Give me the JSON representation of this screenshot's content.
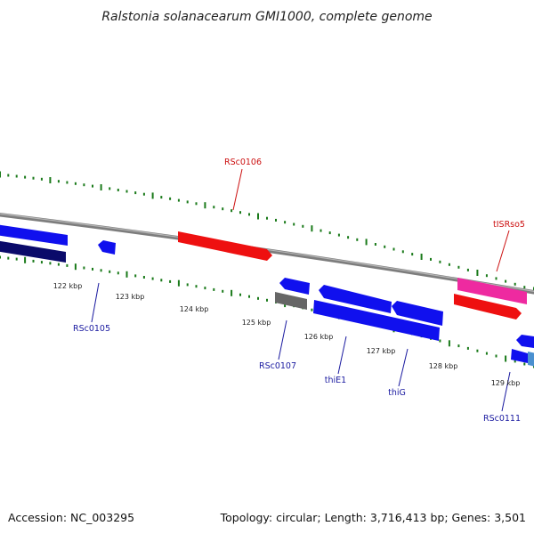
{
  "title": "Ralstonia solanacearum GMI1000, complete genome",
  "footer": {
    "accession": "Accession: NC_003295",
    "summary": "Topology: circular; Length: 3,716,413 bp; Genes: 3,501"
  },
  "colors": {
    "backbone": "#8a8a8a",
    "tick": "#1a7a1a",
    "gene_blue": "#1010ee",
    "gene_navy": "#0a0a6a",
    "gene_red": "#ee1010",
    "gene_pink": "#ee2aa0",
    "gene_gray": "#666666",
    "gene_lightblue": "#4a90d0",
    "label_blue": "#1a1aa0",
    "label_red": "#cc1010"
  },
  "tick_labels": [
    {
      "text": "122 kbp"
    },
    {
      "text": "123 kbp"
    },
    {
      "text": "124 kbp"
    },
    {
      "text": "125 kbp"
    },
    {
      "text": "126 kbp"
    },
    {
      "text": "127 kbp"
    },
    {
      "text": "128 kbp"
    },
    {
      "text": "129 kbp"
    }
  ],
  "gene_labels": [
    {
      "text": "RSc0106",
      "color": "red"
    },
    {
      "text": "tISRso5",
      "color": "red"
    },
    {
      "text": "RSc0105",
      "color": "blue"
    },
    {
      "text": "RSc0107",
      "color": "blue"
    },
    {
      "text": "thiE1",
      "color": "blue"
    },
    {
      "text": "thiG",
      "color": "blue"
    },
    {
      "text": "RSc0111",
      "color": "blue"
    }
  ]
}
